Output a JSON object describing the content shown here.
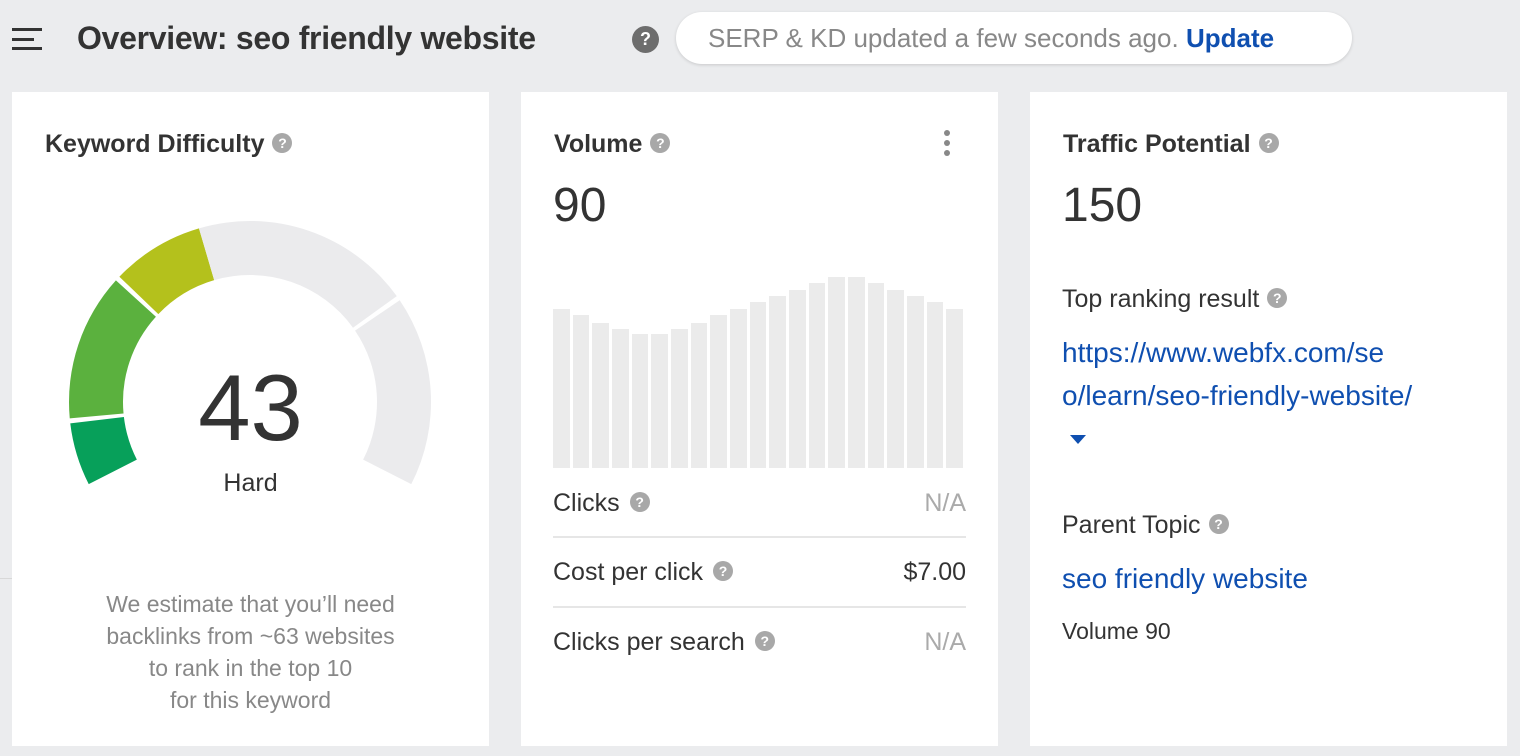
{
  "header": {
    "title": "Overview: seo friendly website",
    "status_text": "SERP & KD updated a few seconds ago.",
    "update_link": "Update"
  },
  "kd": {
    "title": "Keyword Difficulty",
    "value": "43",
    "score": 43,
    "label": "Hard",
    "estimate_lines": [
      "We estimate that you’ll need",
      "backlinks from ~63 websites",
      "to rank in the top 10",
      "for this keyword"
    ]
  },
  "volume": {
    "title": "Volume",
    "value": "90",
    "trend_relative": [
      83,
      80,
      76,
      73,
      70,
      70,
      73,
      76,
      80,
      83,
      87,
      90,
      93,
      97,
      100,
      100,
      97,
      93,
      90,
      87,
      83
    ],
    "rows": [
      {
        "label": "Clicks",
        "value": "N/A"
      },
      {
        "label": "Cost per click",
        "value": "$7.00"
      },
      {
        "label": "Clicks per search",
        "value": "N/A"
      }
    ]
  },
  "traffic": {
    "title": "Traffic Potential",
    "value": "150",
    "top_label": "Top ranking result",
    "top_url_lines": [
      "https://www.webfx.com/se",
      "o/learn/seo-friendly-website/"
    ],
    "parent_label": "Parent Topic",
    "parent_link": "seo friendly website",
    "parent_volume": "Volume 90"
  },
  "colors": {
    "accent": "#0f4fb0",
    "bar": "#ebebeb",
    "gauge_empty": "#ebebed"
  }
}
